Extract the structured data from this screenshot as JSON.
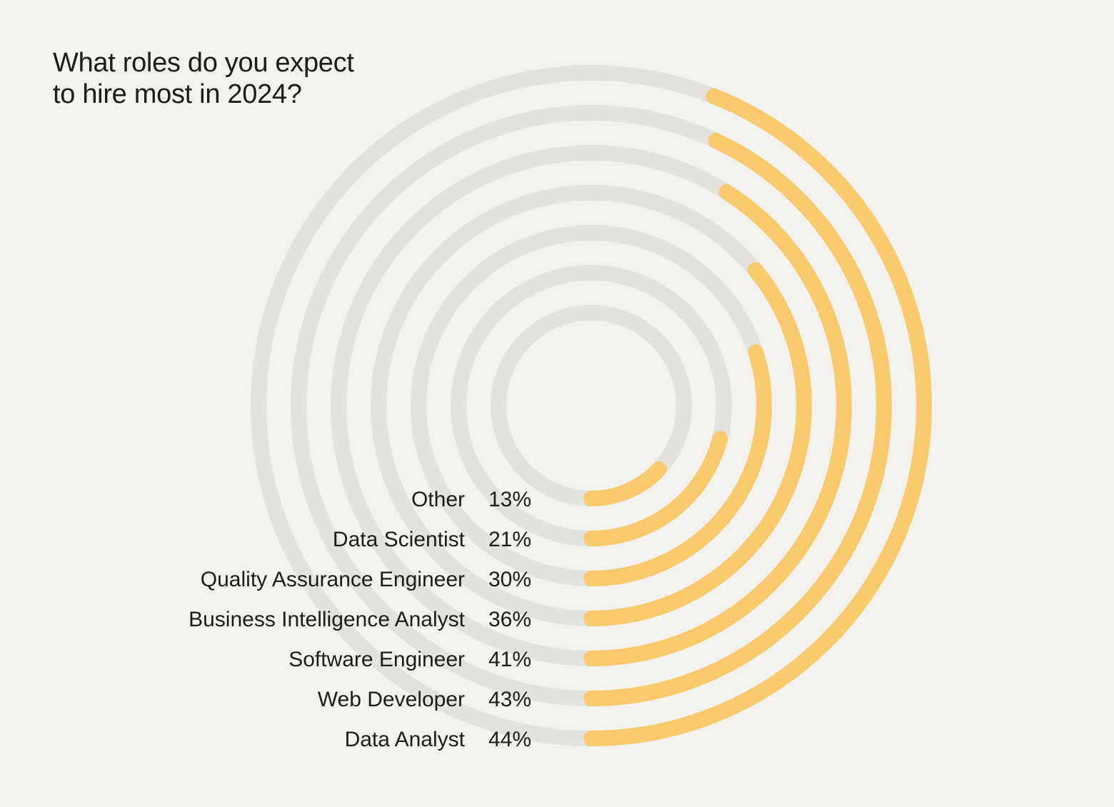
{
  "title": {
    "line1": "What roles do you expect",
    "line2": "to hire most in 2024?"
  },
  "colors": {
    "background": "#f2f1ed",
    "track": "#e3e2de",
    "bar": "#f9cb6d",
    "text": "#1c1c1c"
  },
  "chart_data": {
    "type": "radial-bar",
    "title": "What roles do you expect to hire most in 2024?",
    "full_scale": 100,
    "categories": [
      "Other",
      "Data Scientist",
      "Quality Assurance Engineer",
      "Business Intelligence Analyst",
      "Software Engineer",
      "Web Developer",
      "Data Analyst"
    ],
    "values": [
      13,
      21,
      30,
      36,
      41,
      43,
      44
    ],
    "value_labels": [
      "13%",
      "21%",
      "30%",
      "36%",
      "41%",
      "43%",
      "44%"
    ]
  }
}
